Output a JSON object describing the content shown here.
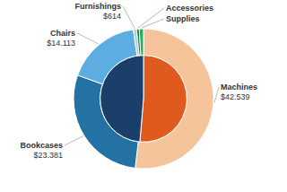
{
  "chart_data": {
    "type": "pie",
    "series": [
      {
        "values": [
          42539,
          40308
        ],
        "colors": [
          "#E05A1E",
          "#1B3F6B"
        ]
      },
      {
        "categories": [
          "Machines",
          "Bookcases",
          "Chairs",
          "Furnishings",
          "Accessories",
          "Supplies"
        ],
        "values": [
          42539,
          23381,
          14113,
          614,
          500,
          800
        ],
        "value_labels": [
          "$42.539",
          "$23.381",
          "$14.113",
          "$614",
          null,
          null
        ],
        "colors": [
          "#F5C49B",
          "#2472A4",
          "#5DADE2",
          "#A9CCE3",
          "#1E7A3A",
          "#27AE60"
        ]
      }
    ]
  }
}
